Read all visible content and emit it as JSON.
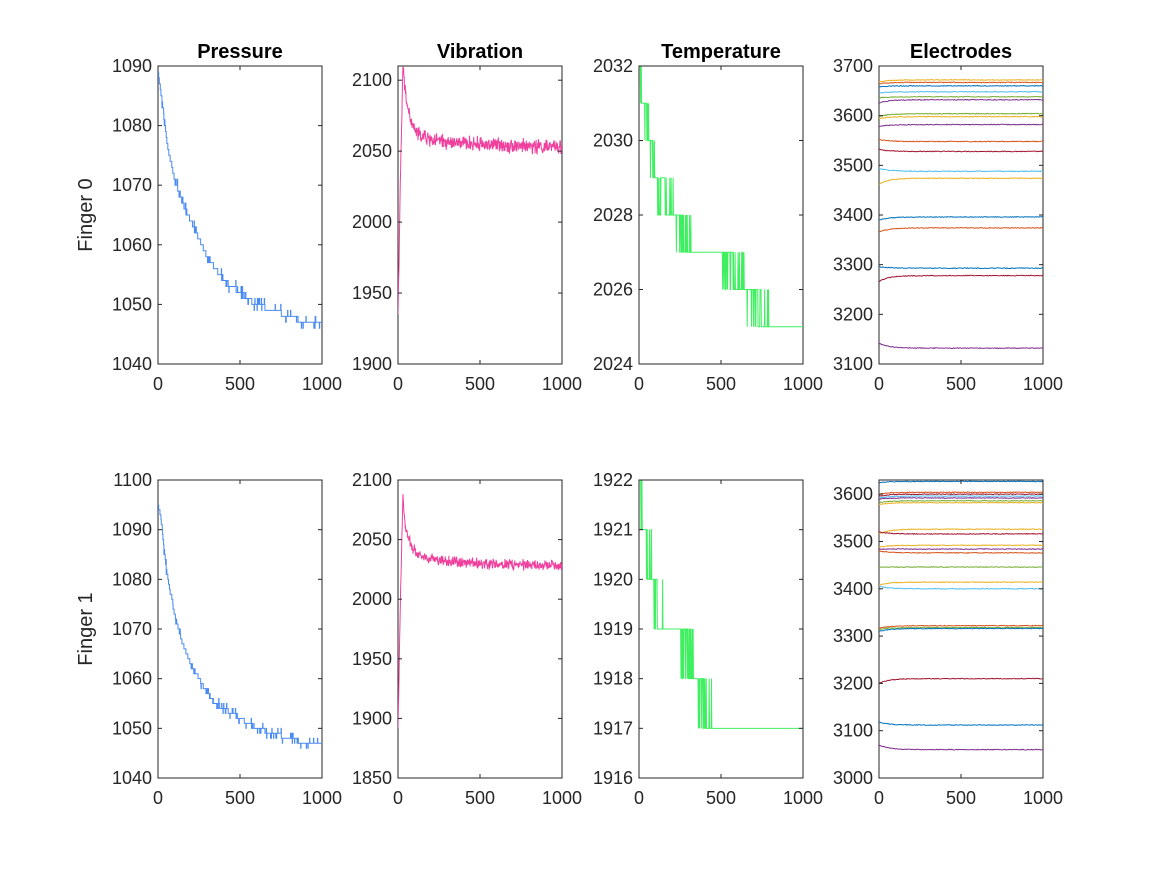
{
  "colors": {
    "pressure": "#4a8af4",
    "vibration": "#f0409e",
    "temperature": "#3ef060",
    "electrode_palette": [
      "#0072BD",
      "#D95319",
      "#EDB120",
      "#7E2F8E",
      "#77AC30",
      "#4DBEEE",
      "#A2142F"
    ]
  },
  "chart_data": [
    {
      "type": "line",
      "row": 0,
      "col": 0,
      "title": "Pressure",
      "ylabel": "Finger 0",
      "xlim": [
        0,
        1000
      ],
      "ylim": [
        1040,
        1090
      ],
      "xticks": [
        "0",
        "500",
        "1000"
      ],
      "yticks": [
        "1040",
        "1050",
        "1060",
        "1070",
        "1080",
        "1090"
      ],
      "series": [
        {
          "color_key": "pressure",
          "mode": "stair",
          "noise": 0.7,
          "x": [
            0,
            20,
            60,
            100,
            150,
            200,
            250,
            300,
            350,
            400,
            450,
            500,
            550,
            600,
            700,
            800,
            900,
            1000
          ],
          "y": [
            1089,
            1085,
            1076,
            1071,
            1067,
            1064,
            1061,
            1058,
            1056,
            1054,
            1053,
            1052,
            1051,
            1050,
            1049,
            1048,
            1047,
            1046.5
          ]
        }
      ]
    },
    {
      "type": "line",
      "row": 0,
      "col": 1,
      "title": "Vibration",
      "xlim": [
        0,
        1000
      ],
      "ylim": [
        1900,
        2110
      ],
      "xticks": [
        "0",
        "500",
        "1000"
      ],
      "yticks": [
        "1900",
        "1950",
        "2000",
        "2050",
        "2100"
      ],
      "series": [
        {
          "color_key": "vibration",
          "mode": "noisy",
          "noise": 4,
          "x": [
            0,
            15,
            30,
            45,
            80,
            120,
            200,
            300,
            500,
            700,
            900,
            1000
          ],
          "y": [
            1935,
            2030,
            2110,
            2090,
            2070,
            2062,
            2058,
            2056,
            2055,
            2054,
            2053,
            2053
          ]
        }
      ]
    },
    {
      "type": "line",
      "row": 0,
      "col": 2,
      "title": "Temperature",
      "xlim": [
        0,
        1000
      ],
      "ylim": [
        2024,
        2032
      ],
      "xticks": [
        "0",
        "500",
        "1000"
      ],
      "yticks": [
        "2024",
        "2026",
        "2028",
        "2030",
        "2032"
      ],
      "series": [
        {
          "color_key": "temperature",
          "mode": "flicker",
          "x": [
            0,
            30,
            100,
            220,
            330,
            500,
            650,
            800,
            1000
          ],
          "y": [
            2032,
            2031,
            2029,
            2028,
            2027,
            2027,
            2026,
            2025,
            2025
          ]
        }
      ]
    },
    {
      "type": "line",
      "row": 0,
      "col": 3,
      "title": "Electrodes",
      "xlim": [
        0,
        1000
      ],
      "ylim": [
        3100,
        3700
      ],
      "xticks": [
        "0",
        "500",
        "1000"
      ],
      "yticks": [
        "3100",
        "3200",
        "3300",
        "3400",
        "3500",
        "3600",
        "3700"
      ],
      "series": [
        {
          "level": 3672,
          "start": 3668,
          "color_index": 2
        },
        {
          "level": 3667,
          "start": 3664,
          "color_index": 1
        },
        {
          "level": 3660,
          "start": 3658,
          "color_index": 0
        },
        {
          "level": 3648,
          "start": 3646,
          "color_index": 5
        },
        {
          "level": 3638,
          "start": 3636,
          "color_index": 4
        },
        {
          "level": 3632,
          "start": 3626,
          "color_index": 3
        },
        {
          "level": 3604,
          "start": 3598,
          "color_index": 4
        },
        {
          "level": 3598,
          "start": 3594,
          "color_index": 2
        },
        {
          "level": 3582,
          "start": 3578,
          "color_index": 3
        },
        {
          "level": 3548,
          "start": 3552,
          "color_index": 1
        },
        {
          "level": 3528,
          "start": 3532,
          "color_index": 6
        },
        {
          "level": 3488,
          "start": 3494,
          "color_index": 5
        },
        {
          "level": 3474,
          "start": 3462,
          "color_index": 2
        },
        {
          "level": 3396,
          "start": 3390,
          "color_index": 0
        },
        {
          "level": 3374,
          "start": 3366,
          "color_index": 1
        },
        {
          "level": 3293,
          "start": 3296,
          "color_index": 0
        },
        {
          "level": 3278,
          "start": 3266,
          "color_index": 6
        },
        {
          "level": 3132,
          "start": 3142,
          "color_index": 3
        }
      ]
    },
    {
      "type": "line",
      "row": 1,
      "col": 0,
      "title": "",
      "ylabel": "Finger 1",
      "xlim": [
        0,
        1000
      ],
      "ylim": [
        1040,
        1100
      ],
      "xticks": [
        "0",
        "500",
        "1000"
      ],
      "yticks": [
        "1040",
        "1050",
        "1060",
        "1070",
        "1080",
        "1090",
        "1100"
      ],
      "series": [
        {
          "color_key": "pressure",
          "mode": "stair",
          "noise": 0.7,
          "x": [
            0,
            15,
            50,
            100,
            150,
            200,
            250,
            300,
            350,
            400,
            450,
            500,
            600,
            700,
            800,
            900,
            1000
          ],
          "y": [
            1095,
            1093,
            1082,
            1073,
            1067,
            1063,
            1060,
            1057,
            1055,
            1054,
            1053,
            1052,
            1050,
            1049,
            1048,
            1047,
            1046.5
          ]
        }
      ]
    },
    {
      "type": "line",
      "row": 1,
      "col": 1,
      "title": "",
      "xlim": [
        0,
        1000
      ],
      "ylim": [
        1850,
        2100
      ],
      "xticks": [
        "0",
        "500",
        "1000"
      ],
      "yticks": [
        "1850",
        "1900",
        "1950",
        "2000",
        "2050",
        "2100"
      ],
      "series": [
        {
          "color_key": "vibration",
          "mode": "noisy",
          "noise": 3.5,
          "x": [
            0,
            15,
            30,
            45,
            80,
            120,
            200,
            300,
            500,
            700,
            900,
            1000
          ],
          "y": [
            1890,
            2000,
            2088,
            2060,
            2045,
            2038,
            2034,
            2032,
            2030,
            2029,
            2028,
            2028
          ]
        }
      ]
    },
    {
      "type": "line",
      "row": 1,
      "col": 2,
      "title": "",
      "xlim": [
        0,
        1000
      ],
      "ylim": [
        1916,
        1922
      ],
      "xticks": [
        "0",
        "500",
        "1000"
      ],
      "yticks": [
        "1916",
        "1917",
        "1918",
        "1919",
        "1920",
        "1921",
        "1922"
      ],
      "series": [
        {
          "color_key": "temperature",
          "mode": "flicker",
          "x": [
            0,
            20,
            80,
            150,
            250,
            350,
            450,
            550,
            700,
            850,
            1000
          ],
          "y": [
            1922,
            1921,
            1920,
            1919,
            1919,
            1918,
            1917,
            1917,
            1917,
            1917,
            1917
          ]
        }
      ]
    },
    {
      "type": "line",
      "row": 1,
      "col": 3,
      "title": "",
      "xlim": [
        0,
        1000
      ],
      "ylim": [
        3000,
        3630
      ],
      "xticks": [
        "0",
        "500",
        "1000"
      ],
      "yticks": [
        "3000",
        "3100",
        "3200",
        "3300",
        "3400",
        "3500",
        "3600"
      ],
      "series": [
        {
          "level": 3627,
          "start": 3624,
          "color_index": 0
        },
        {
          "level": 3604,
          "start": 3600,
          "color_index": 1
        },
        {
          "level": 3600,
          "start": 3596,
          "color_index": 6
        },
        {
          "level": 3596,
          "start": 3592,
          "color_index": 5
        },
        {
          "level": 3592,
          "start": 3590,
          "color_index": 3
        },
        {
          "level": 3586,
          "start": 3582,
          "color_index": 4
        },
        {
          "level": 3582,
          "start": 3578,
          "color_index": 2
        },
        {
          "level": 3526,
          "start": 3516,
          "color_index": 2
        },
        {
          "level": 3516,
          "start": 3520,
          "color_index": 6
        },
        {
          "level": 3492,
          "start": 3488,
          "color_index": 2
        },
        {
          "level": 3484,
          "start": 3484,
          "color_index": 3
        },
        {
          "level": 3476,
          "start": 3480,
          "color_index": 1
        },
        {
          "level": 3446,
          "start": 3446,
          "color_index": 4
        },
        {
          "level": 3414,
          "start": 3408,
          "color_index": 2
        },
        {
          "level": 3400,
          "start": 3406,
          "color_index": 5
        },
        {
          "level": 3322,
          "start": 3316,
          "color_index": 1
        },
        {
          "level": 3318,
          "start": 3314,
          "color_index": 4
        },
        {
          "level": 3316,
          "start": 3310,
          "color_index": 0
        },
        {
          "level": 3210,
          "start": 3200,
          "color_index": 6
        },
        {
          "level": 3112,
          "start": 3118,
          "color_index": 0
        },
        {
          "level": 3060,
          "start": 3070,
          "color_index": 3
        }
      ]
    }
  ]
}
